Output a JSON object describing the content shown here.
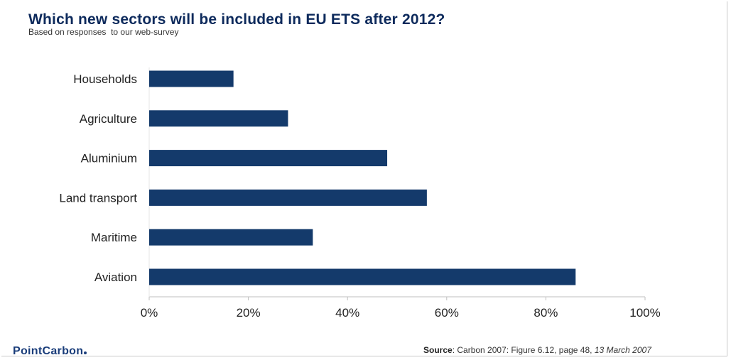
{
  "header": {
    "title": "Which new sectors will be included in EU ETS after 2012?",
    "subtitle": "Based on responses  to our web-survey"
  },
  "footer": {
    "logo_part1": "Point",
    "logo_part2": "Carbon",
    "source_label": "Source",
    "source_text": ": Carbon 2007: Figure 6.12, page 48, ",
    "source_date": "13 March 2007"
  },
  "colors": {
    "bar": "#143a6b",
    "axis": "#bfbfbf",
    "label": "#222222"
  },
  "chart_data": {
    "type": "bar",
    "orientation": "horizontal",
    "title": "Which new sectors will be included in EU ETS after 2012?",
    "subtitle": "Based on responses  to our web-survey",
    "categories": [
      "Households",
      "Agriculture",
      "Aluminium",
      "Land transport",
      "Maritime",
      "Aviation"
    ],
    "values": [
      17,
      28,
      48,
      56,
      33,
      86
    ],
    "xlim": [
      0,
      100
    ],
    "xticks": [
      0,
      20,
      40,
      60,
      80,
      100
    ],
    "xtick_labels": [
      "0%",
      "20%",
      "40%",
      "60%",
      "80%",
      "100%"
    ],
    "grid": false,
    "legend": "none"
  }
}
